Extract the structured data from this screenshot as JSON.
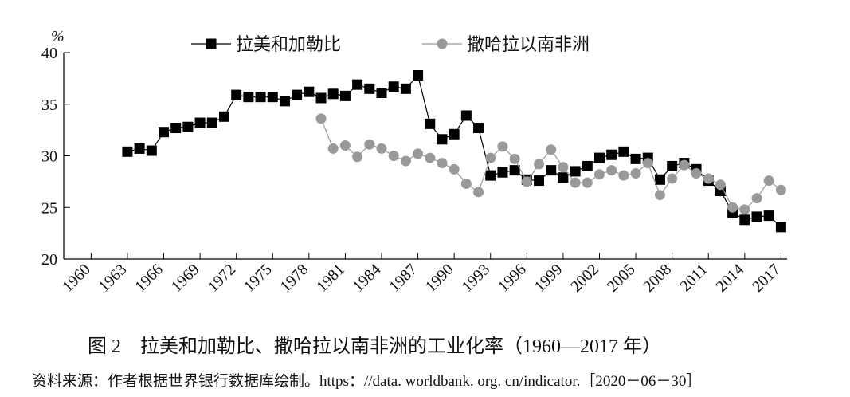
{
  "chart_data": {
    "type": "line",
    "y_label": "%",
    "caption": "图 2　拉美和加勒比、撒哈拉以南非洲的工业化率（1960—2017 年）",
    "source": "资料来源：作者根据世界银行数据库绘制。https：//data. worldbank. org. cn/indicator.［2020－06－30］",
    "xlim": [
      1957.74,
      2017.5
    ],
    "xticks": [
      1960,
      1963,
      1966,
      1969,
      1972,
      1975,
      1978,
      1981,
      1984,
      1987,
      1990,
      1993,
      1996,
      1999,
      2002,
      2005,
      2008,
      2011,
      2014,
      2017
    ],
    "ylim": [
      20,
      40
    ],
    "yticks": [
      20,
      25,
      30,
      35,
      40
    ],
    "legend": "top",
    "series": [
      {
        "name": "拉美和加勒比",
        "color": "#000000",
        "marker": "square",
        "x": [
          1963,
          1964,
          1965,
          1966,
          1967,
          1968,
          1969,
          1970,
          1971,
          1972,
          1973,
          1974,
          1975,
          1976,
          1977,
          1978,
          1979,
          1980,
          1981,
          1982,
          1983,
          1984,
          1985,
          1986,
          1987,
          1988,
          1989,
          1990,
          1991,
          1992,
          1993,
          1994,
          1995,
          1996,
          1997,
          1998,
          1999,
          2000,
          2001,
          2002,
          2003,
          2004,
          2005,
          2006,
          2007,
          2008,
          2009,
          2010,
          2011,
          2012,
          2013,
          2014,
          2015,
          2016,
          2017
        ],
        "values": [
          30.4,
          30.7,
          30.5,
          32.3,
          32.7,
          32.8,
          33.2,
          33.2,
          33.8,
          35.9,
          35.7,
          35.7,
          35.7,
          35.3,
          35.9,
          36.2,
          35.6,
          36.0,
          35.8,
          36.9,
          36.5,
          36.1,
          36.7,
          36.5,
          37.8,
          33.1,
          31.6,
          32.1,
          33.9,
          32.7,
          28.1,
          28.4,
          28.6,
          27.7,
          27.6,
          28.6,
          27.9,
          28.5,
          29.0,
          29.8,
          30.1,
          30.4,
          29.7,
          29.8,
          27.7,
          29.0,
          29.3,
          28.7,
          27.6,
          26.6,
          24.5,
          23.8,
          24.1,
          24.2,
          23.1
        ]
      },
      {
        "name": "撒哈拉以南非洲",
        "color": "#999999",
        "marker": "circle",
        "x": [
          1979,
          1980,
          1981,
          1982,
          1983,
          1984,
          1985,
          1986,
          1987,
          1988,
          1989,
          1990,
          1991,
          1992,
          1993,
          1994,
          1995,
          1996,
          1997,
          1998,
          1999,
          2000,
          2001,
          2002,
          2003,
          2004,
          2005,
          2006,
          2007,
          2008,
          2009,
          2010,
          2011,
          2012,
          2013,
          2014,
          2015,
          2016,
          2017
        ],
        "values": [
          33.6,
          30.7,
          31.0,
          29.9,
          31.1,
          30.7,
          30.0,
          29.5,
          30.2,
          29.8,
          29.3,
          28.7,
          27.3,
          26.5,
          29.8,
          30.9,
          29.7,
          27.5,
          29.2,
          30.6,
          28.9,
          27.4,
          27.4,
          28.2,
          28.6,
          28.1,
          28.3,
          29.3,
          26.2,
          27.8,
          29.1,
          28.3,
          27.8,
          27.2,
          25.0,
          24.8,
          25.9,
          27.6,
          26.7
        ]
      }
    ]
  }
}
